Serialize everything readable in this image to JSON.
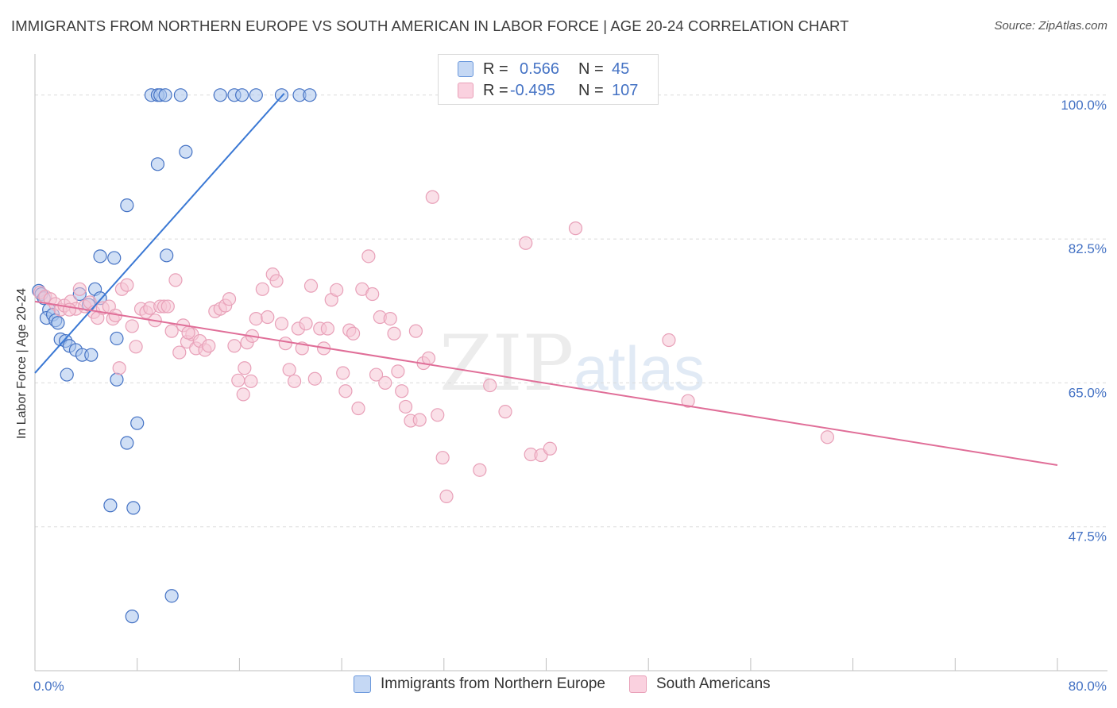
{
  "title": "IMMIGRANTS FROM NORTHERN EUROPE VS SOUTH AMERICAN IN LABOR FORCE | AGE 20-24 CORRELATION CHART",
  "source": "Source: ZipAtlas.com",
  "watermark": {
    "zip": "ZIP",
    "atlas": "atlas"
  },
  "colors": {
    "blue": "#4472c4",
    "blue_fill": "#aac4ec",
    "blue_line": "#3a78d4",
    "pink": "#e8a0b8",
    "pink_fill": "#f6c6d6",
    "pink_line": "#e06e98"
  },
  "legend": {
    "rows": [
      {
        "r_label": "R =",
        "r_value": "0.566",
        "n_label": "N =",
        "n_value": "45"
      },
      {
        "r_label": "R =",
        "r_value": "-0.495",
        "n_label": "N =",
        "n_value": "107"
      }
    ]
  },
  "bottom_legend": [
    "Immigrants from Northern Europe",
    "South Americans"
  ],
  "chart_data": {
    "type": "scatter",
    "title": "IMMIGRANTS FROM NORTHERN EUROPE VS SOUTH AMERICAN IN LABOR FORCE | AGE 20-24 CORRELATION CHART",
    "xlabel": "",
    "ylabel": "In Labor Force | Age 20-24",
    "xlim": [
      0,
      80
    ],
    "ylim": [
      30,
      105
    ],
    "x_tick_labels": [
      "0.0%",
      "80.0%"
    ],
    "y_ticks": [
      100.0,
      82.5,
      65.0,
      47.5
    ],
    "y_tick_labels": [
      "100.0%",
      "82.5%",
      "65.0%",
      "47.5%"
    ],
    "grid": true,
    "series": [
      {
        "name": "Immigrants from Northern Europe",
        "R": 0.566,
        "N": 45,
        "trend": {
          "x": [
            0.0,
            19.5
          ],
          "y": [
            66.2,
            100.2
          ]
        },
        "points": [
          [
            9.1,
            100
          ],
          [
            9.6,
            100
          ],
          [
            9.8,
            100
          ],
          [
            10.2,
            100
          ],
          [
            11.4,
            100
          ],
          [
            14.5,
            100
          ],
          [
            15.6,
            100
          ],
          [
            16.2,
            100
          ],
          [
            17.3,
            100
          ],
          [
            19.3,
            100
          ],
          [
            20.7,
            100
          ],
          [
            21.5,
            100
          ],
          [
            11.8,
            93.1
          ],
          [
            9.6,
            91.6
          ],
          [
            7.2,
            86.6
          ],
          [
            5.1,
            80.4
          ],
          [
            6.2,
            80.2
          ],
          [
            10.3,
            80.5
          ],
          [
            0.3,
            76.2
          ],
          [
            0.5,
            75.8
          ],
          [
            0.7,
            75.3
          ],
          [
            1.1,
            73.9
          ],
          [
            4.7,
            76.4
          ],
          [
            5.1,
            75.3
          ],
          [
            3.5,
            75.8
          ],
          [
            4.2,
            74.5
          ],
          [
            0.9,
            72.9
          ],
          [
            1.4,
            73.3
          ],
          [
            1.6,
            72.6
          ],
          [
            1.8,
            72.3
          ],
          [
            2.0,
            70.3
          ],
          [
            2.4,
            70.1
          ],
          [
            2.7,
            69.5
          ],
          [
            3.2,
            69.0
          ],
          [
            3.7,
            68.4
          ],
          [
            4.4,
            68.4
          ],
          [
            6.4,
            70.4
          ],
          [
            2.5,
            66.0
          ],
          [
            6.4,
            65.4
          ],
          [
            8.0,
            60.1
          ],
          [
            7.2,
            57.7
          ],
          [
            5.9,
            50.1
          ],
          [
            7.7,
            49.8
          ],
          [
            10.7,
            39.1
          ],
          [
            7.6,
            36.6
          ]
        ]
      },
      {
        "name": "South Americans",
        "R": -0.495,
        "N": 107,
        "trend": {
          "x": [
            0.0,
            80.0
          ],
          "y": [
            74.9,
            55.0
          ]
        },
        "points": [
          [
            0.4,
            76.0
          ],
          [
            0.8,
            75.5
          ],
          [
            1.2,
            75.2
          ],
          [
            1.6,
            74.6
          ],
          [
            2.0,
            73.9
          ],
          [
            2.3,
            74.4
          ],
          [
            2.8,
            74.9
          ],
          [
            3.2,
            74.0
          ],
          [
            3.5,
            76.4
          ],
          [
            3.9,
            74.3
          ],
          [
            4.3,
            74.8
          ],
          [
            4.6,
            73.6
          ],
          [
            4.9,
            72.9
          ],
          [
            5.3,
            74.1
          ],
          [
            5.8,
            74.3
          ],
          [
            6.1,
            72.8
          ],
          [
            6.3,
            73.2
          ],
          [
            6.8,
            76.4
          ],
          [
            7.2,
            76.9
          ],
          [
            7.6,
            71.9
          ],
          [
            7.9,
            69.4
          ],
          [
            8.3,
            74.0
          ],
          [
            8.7,
            73.6
          ],
          [
            9.0,
            74.1
          ],
          [
            9.4,
            72.6
          ],
          [
            9.8,
            74.3
          ],
          [
            10.1,
            74.3
          ],
          [
            10.4,
            74.3
          ],
          [
            10.7,
            71.3
          ],
          [
            11.0,
            77.5
          ],
          [
            11.3,
            68.7
          ],
          [
            11.6,
            72.0
          ],
          [
            11.9,
            70.0
          ],
          [
            12.3,
            70.9
          ],
          [
            12.6,
            69.2
          ],
          [
            12.9,
            70.1
          ],
          [
            13.3,
            69.0
          ],
          [
            13.6,
            69.5
          ],
          [
            14.1,
            73.7
          ],
          [
            14.5,
            74.0
          ],
          [
            14.9,
            74.4
          ],
          [
            15.2,
            75.2
          ],
          [
            15.6,
            69.5
          ],
          [
            15.9,
            65.3
          ],
          [
            16.3,
            63.6
          ],
          [
            16.6,
            69.9
          ],
          [
            16.9,
            65.2
          ],
          [
            17.3,
            72.8
          ],
          [
            17.8,
            76.4
          ],
          [
            18.2,
            73.0
          ],
          [
            18.6,
            78.2
          ],
          [
            18.9,
            77.4
          ],
          [
            19.3,
            72.2
          ],
          [
            19.6,
            69.8
          ],
          [
            19.9,
            66.6
          ],
          [
            20.3,
            65.2
          ],
          [
            20.6,
            71.6
          ],
          [
            20.9,
            69.2
          ],
          [
            21.2,
            72.2
          ],
          [
            21.6,
            76.8
          ],
          [
            21.9,
            65.5
          ],
          [
            22.3,
            71.6
          ],
          [
            22.6,
            69.2
          ],
          [
            22.9,
            71.6
          ],
          [
            23.2,
            75.1
          ],
          [
            23.6,
            76.3
          ],
          [
            24.1,
            66.2
          ],
          [
            24.3,
            64.0
          ],
          [
            24.6,
            71.4
          ],
          [
            24.9,
            71.0
          ],
          [
            25.3,
            61.9
          ],
          [
            25.6,
            76.4
          ],
          [
            26.1,
            80.4
          ],
          [
            26.4,
            75.8
          ],
          [
            26.7,
            66.0
          ],
          [
            27.0,
            73.0
          ],
          [
            27.4,
            65.0
          ],
          [
            27.8,
            72.8
          ],
          [
            28.1,
            71.0
          ],
          [
            28.4,
            66.4
          ],
          [
            28.7,
            64.0
          ],
          [
            29.0,
            62.1
          ],
          [
            29.4,
            60.4
          ],
          [
            29.8,
            71.3
          ],
          [
            30.1,
            60.5
          ],
          [
            30.4,
            67.4
          ],
          [
            30.8,
            68.0
          ],
          [
            31.1,
            87.6
          ],
          [
            31.5,
            61.1
          ],
          [
            31.9,
            55.9
          ],
          [
            32.2,
            51.2
          ],
          [
            34.8,
            54.4
          ],
          [
            35.6,
            64.7
          ],
          [
            36.8,
            61.5
          ],
          [
            38.4,
            82.0
          ],
          [
            38.8,
            56.3
          ],
          [
            39.6,
            56.2
          ],
          [
            40.3,
            57.0
          ],
          [
            42.3,
            83.8
          ],
          [
            49.6,
            70.2
          ],
          [
            51.1,
            62.8
          ],
          [
            62.0,
            58.4
          ],
          [
            6.6,
            66.8
          ],
          [
            12.0,
            71.1
          ],
          [
            16.4,
            66.8
          ],
          [
            17.0,
            70.7
          ],
          [
            2.7,
            73.9
          ]
        ]
      }
    ]
  }
}
